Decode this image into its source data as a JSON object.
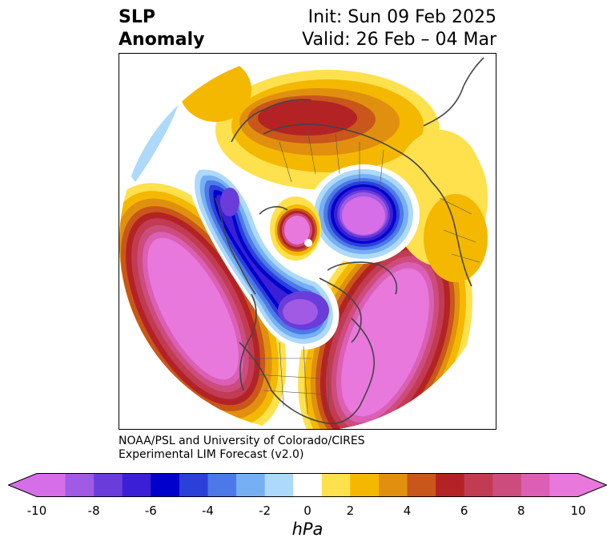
{
  "title": {
    "left_line1": "SLP",
    "left_line2": "Anomaly",
    "init": "Init: Sun 09 Feb 2025",
    "valid": "Valid: 26 Feb – 04 Mar"
  },
  "credit": {
    "line1": "NOAA/PSL and University of Colorado/CIRES",
    "line2": "Experimental LIM Forecast (v2.0)"
  },
  "colorbar": {
    "unit": "hPa",
    "ticks": [
      "-10",
      "-8",
      "-6",
      "-4",
      "-2",
      "0",
      "2",
      "4",
      "6",
      "8",
      "10"
    ],
    "bounds": [
      -10,
      -9,
      -8,
      -7,
      -6,
      -5,
      -4,
      -3,
      -2,
      -1,
      1,
      2,
      3,
      4,
      5,
      6,
      7,
      8,
      9,
      10
    ],
    "colors": [
      "#d66ee8",
      "#a05ae3",
      "#6a3ddb",
      "#3a1fd6",
      "#0000cc",
      "#2b3fd9",
      "#4d79e8",
      "#77b0f2",
      "#add9fb",
      "#ffffff",
      "#ffe14d",
      "#f4b800",
      "#e0900e",
      "#c9561a",
      "#b32325",
      "#c13b52",
      "#cc4c7e",
      "#db5fb4",
      "#e878dc"
    ],
    "extend_low_color": "#d66ee8",
    "extend_high_color": "#e878dc"
  },
  "map": {
    "land_outline_color": "#444444",
    "projection": "north-polar-stereographic"
  }
}
